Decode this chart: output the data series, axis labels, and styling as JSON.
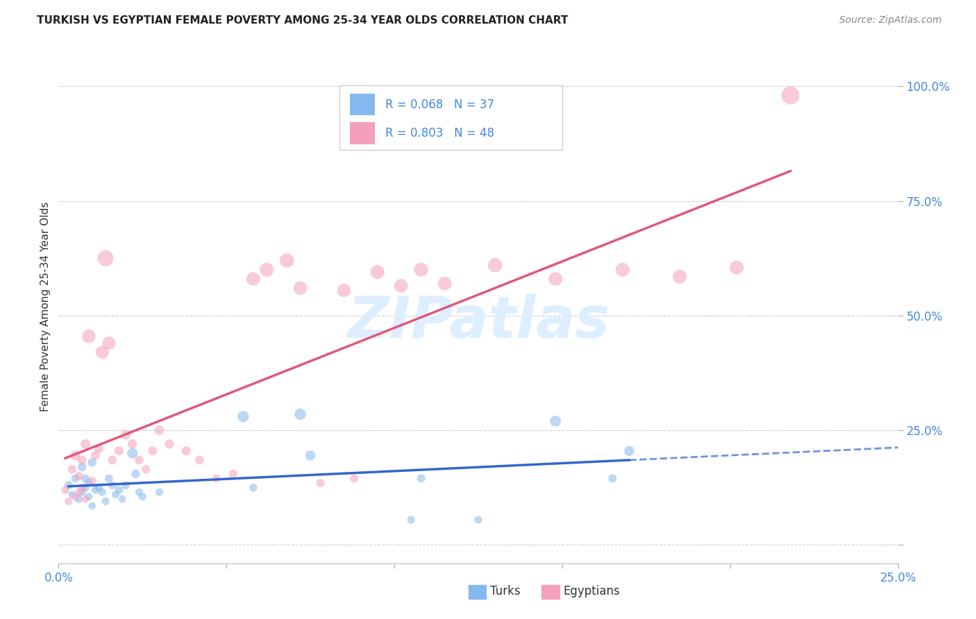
{
  "title": "TURKISH VS EGYPTIAN FEMALE POVERTY AMONG 25-34 YEAR OLDS CORRELATION CHART",
  "source": "Source: ZipAtlas.com",
  "ylabel": "Female Poverty Among 25-34 Year Olds",
  "xlim": [
    0.0,
    0.25
  ],
  "ylim": [
    -0.04,
    1.08
  ],
  "xticks": [
    0.0,
    0.05,
    0.1,
    0.15,
    0.2,
    0.25
  ],
  "yticks": [
    0.0,
    0.25,
    0.5,
    0.75,
    1.0
  ],
  "xtick_labels": [
    "0.0%",
    "",
    "",
    "",
    "",
    "25.0%"
  ],
  "ytick_labels": [
    "",
    "25.0%",
    "50.0%",
    "75.0%",
    "100.0%"
  ],
  "turks_R": 0.068,
  "turks_N": 37,
  "egyptians_R": 0.803,
  "egyptians_N": 48,
  "turks_color": "#85B8EE",
  "turks_line_color": "#3366CC",
  "egyptians_color": "#F5A0BB",
  "egyptians_line_color": "#E05878",
  "bg_color": "#FFFFFF",
  "grid_color": "#CCCCCC",
  "title_color": "#222222",
  "source_color": "#888888",
  "tick_color": "#4488DD",
  "axis_label_color": "#333333",
  "watermark": "ZIPatlas",
  "watermark_color": "#DDEEFF",
  "legend_text_color": "#4488DD",
  "turks_x": [
    0.003,
    0.004,
    0.005,
    0.006,
    0.007,
    0.007,
    0.008,
    0.008,
    0.009,
    0.009,
    0.01,
    0.01,
    0.011,
    0.012,
    0.013,
    0.014,
    0.015,
    0.016,
    0.017,
    0.018,
    0.019,
    0.02,
    0.022,
    0.023,
    0.024,
    0.025,
    0.03,
    0.055,
    0.058,
    0.072,
    0.075,
    0.105,
    0.108,
    0.125,
    0.148,
    0.165,
    0.17
  ],
  "turks_y": [
    0.13,
    0.11,
    0.145,
    0.1,
    0.17,
    0.115,
    0.145,
    0.125,
    0.135,
    0.105,
    0.18,
    0.085,
    0.12,
    0.125,
    0.115,
    0.095,
    0.145,
    0.13,
    0.11,
    0.12,
    0.1,
    0.13,
    0.2,
    0.155,
    0.115,
    0.105,
    0.115,
    0.28,
    0.125,
    0.285,
    0.195,
    0.055,
    0.145,
    0.055,
    0.27,
    0.145,
    0.205
  ],
  "turks_sizes": [
    80,
    60,
    70,
    65,
    80,
    65,
    75,
    70,
    70,
    65,
    80,
    60,
    70,
    70,
    65,
    65,
    75,
    70,
    65,
    70,
    60,
    70,
    120,
    80,
    65,
    65,
    65,
    140,
    70,
    140,
    110,
    65,
    75,
    65,
    130,
    75,
    110
  ],
  "egyptians_x": [
    0.002,
    0.003,
    0.004,
    0.005,
    0.005,
    0.006,
    0.006,
    0.007,
    0.007,
    0.008,
    0.008,
    0.009,
    0.01,
    0.011,
    0.012,
    0.013,
    0.014,
    0.015,
    0.016,
    0.018,
    0.02,
    0.022,
    0.024,
    0.026,
    0.028,
    0.03,
    0.033,
    0.038,
    0.042,
    0.047,
    0.052,
    0.058,
    0.062,
    0.068,
    0.072,
    0.078,
    0.085,
    0.088,
    0.095,
    0.102,
    0.108,
    0.115,
    0.13,
    0.148,
    0.168,
    0.185,
    0.202,
    0.218
  ],
  "egyptians_y": [
    0.12,
    0.095,
    0.165,
    0.105,
    0.195,
    0.115,
    0.15,
    0.125,
    0.185,
    0.1,
    0.22,
    0.455,
    0.14,
    0.195,
    0.21,
    0.42,
    0.625,
    0.44,
    0.185,
    0.205,
    0.24,
    0.22,
    0.185,
    0.165,
    0.205,
    0.25,
    0.22,
    0.205,
    0.185,
    0.145,
    0.155,
    0.58,
    0.6,
    0.62,
    0.56,
    0.135,
    0.555,
    0.145,
    0.595,
    0.565,
    0.6,
    0.57,
    0.61,
    0.58,
    0.6,
    0.585,
    0.605,
    0.98
  ],
  "egyptians_sizes": [
    70,
    65,
    80,
    65,
    100,
    70,
    80,
    70,
    90,
    65,
    100,
    200,
    75,
    90,
    90,
    190,
    280,
    190,
    85,
    90,
    100,
    95,
    85,
    80,
    90,
    100,
    95,
    90,
    85,
    75,
    80,
    200,
    210,
    220,
    200,
    75,
    200,
    75,
    210,
    200,
    210,
    200,
    215,
    205,
    210,
    205,
    210,
    350
  ]
}
